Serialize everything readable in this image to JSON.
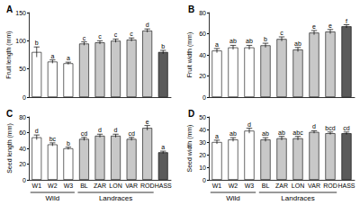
{
  "chart_data": [
    {
      "type": "bar",
      "title": "A",
      "y_label": "Fruit length (mm)",
      "categories": [
        "W1",
        "W2",
        "W3",
        "BL",
        "ZAR",
        "LON",
        "VAR",
        "ROD",
        "HASS"
      ],
      "values": [
        80,
        63,
        60,
        95,
        97,
        100,
        102,
        118,
        80
      ],
      "errors": [
        9,
        3,
        2,
        3,
        3,
        3,
        3,
        3,
        3
      ],
      "letters": [
        "b",
        "a",
        "a",
        "c",
        "c",
        "c",
        "c",
        "d",
        "b"
      ],
      "colors": [
        "#ffffff",
        "#ffffff",
        "#ffffff",
        "#c8c8c8",
        "#c8c8c8",
        "#c8c8c8",
        "#c8c8c8",
        "#c8c8c8",
        "#5a5a5a"
      ],
      "ylim": [
        0,
        150
      ],
      "yticks": [
        0,
        50,
        100,
        150
      ],
      "grid": false,
      "tick_labels": "y"
    },
    {
      "type": "bar",
      "title": "B",
      "y_label": "Fruit width (mm)",
      "categories": [
        "W1",
        "W2",
        "W3",
        "BL",
        "ZAR",
        "LON",
        "VAR",
        "ROD",
        "HASS"
      ],
      "values": [
        44,
        47,
        47,
        49,
        55,
        45,
        61,
        62,
        67
      ],
      "errors": [
        2,
        2,
        2,
        2,
        2,
        2,
        2,
        2,
        1.5
      ],
      "letters": [
        "a",
        "ab",
        "ab",
        "b",
        "c",
        "ab",
        "e",
        "e",
        "f"
      ],
      "colors": [
        "#ffffff",
        "#ffffff",
        "#ffffff",
        "#c8c8c8",
        "#c8c8c8",
        "#c8c8c8",
        "#c8c8c8",
        "#c8c8c8",
        "#5a5a5a"
      ],
      "ylim": [
        0,
        80
      ],
      "yticks": [
        0,
        20,
        40,
        60,
        80
      ],
      "grid": false,
      "tick_labels": "y"
    },
    {
      "type": "bar",
      "title": "C",
      "y_label": "Seed length (mm)",
      "categories": [
        "W1",
        "W2",
        "W3",
        "BL",
        "ZAR",
        "LON",
        "VAR",
        "ROD",
        "HASS"
      ],
      "values": [
        54,
        45,
        40,
        52,
        56,
        56,
        52,
        66,
        35
      ],
      "errors": [
        3,
        2,
        1.5,
        2,
        2,
        2,
        2,
        3,
        1.5
      ],
      "letters": [
        "d",
        "bc",
        "b",
        "cd",
        "d",
        "d",
        "cd",
        "e",
        "a"
      ],
      "colors": [
        "#ffffff",
        "#ffffff",
        "#ffffff",
        "#c8c8c8",
        "#c8c8c8",
        "#c8c8c8",
        "#c8c8c8",
        "#c8c8c8",
        "#5a5a5a"
      ],
      "ylim": [
        0,
        80
      ],
      "yticks": [
        0,
        20,
        40,
        60,
        80
      ],
      "grid": false,
      "groups": [
        {
          "label": "Wild",
          "categories": [
            "W1",
            "W2",
            "W3"
          ]
        },
        {
          "label": "Landraces",
          "categories": [
            "BL",
            "ZAR",
            "LON",
            "VAR",
            "ROD"
          ]
        }
      ]
    },
    {
      "type": "bar",
      "title": "D",
      "y_label": "Seed width (mm)",
      "categories": [
        "W1",
        "W2",
        "W3",
        "BL",
        "ZAR",
        "LON",
        "VAR",
        "ROD",
        "HASS"
      ],
      "values": [
        30,
        32,
        39,
        32,
        33,
        33,
        38,
        37,
        37
      ],
      "errors": [
        1.5,
        1.5,
        2,
        1.5,
        1.5,
        1.5,
        1,
        1,
        1
      ],
      "letters": [
        "a",
        "ab",
        "d",
        "ab",
        "ab",
        "abc",
        "d",
        "bcd",
        "cd"
      ],
      "colors": [
        "#ffffff",
        "#ffffff",
        "#ffffff",
        "#c8c8c8",
        "#c8c8c8",
        "#c8c8c8",
        "#c8c8c8",
        "#c8c8c8",
        "#5a5a5a"
      ],
      "ylim": [
        0,
        50
      ],
      "yticks": [
        0,
        10,
        20,
        30,
        40,
        50
      ],
      "grid": false,
      "groups": [
        {
          "label": "Wild",
          "categories": [
            "W1",
            "W2",
            "W3"
          ]
        },
        {
          "label": "Landraces",
          "categories": [
            "BL",
            "ZAR",
            "LON",
            "VAR",
            "ROD"
          ]
        }
      ]
    }
  ]
}
